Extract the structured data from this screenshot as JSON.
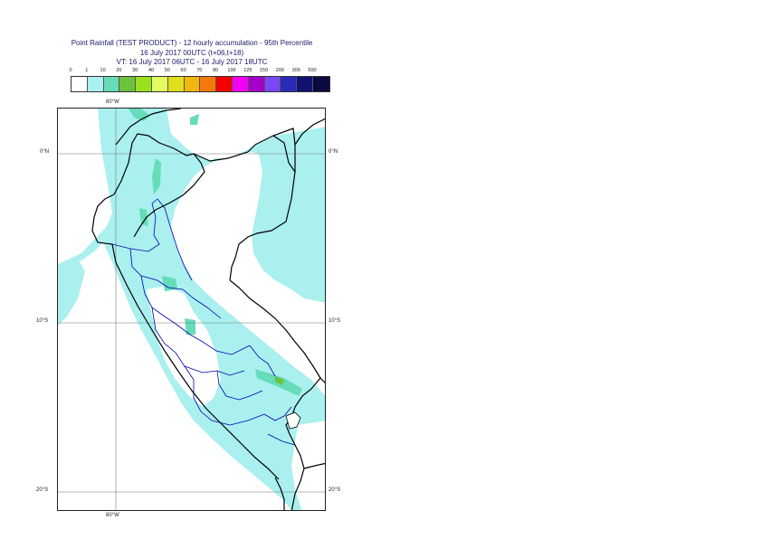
{
  "title": {
    "line1": "Point Rainfall (TEST PRODUCT) - 12 hourly accumulation - 95th Percentile",
    "line2": "16 July 2017 00UTC (t+06,t+18)",
    "line3": "VT: 16 July 2017 06UTC - 16 July 2017 18UTC"
  },
  "legend": {
    "thresholds": [
      "0",
      "1",
      "10",
      "20",
      "30",
      "40",
      "50",
      "60",
      "70",
      "80",
      "100",
      "125",
      "150",
      "200",
      "300",
      "500"
    ],
    "colors": [
      "#ffffff",
      "#aaf0ef",
      "#66dcb8",
      "#6cc23c",
      "#9be01e",
      "#e3fa64",
      "#e0e01c",
      "#f3b60e",
      "#f5780c",
      "#f50000",
      "#f200f2",
      "#a400c8",
      "#7a48f5",
      "#2a2ab8",
      "#121272",
      "#0a0a40"
    ]
  },
  "axes": {
    "lon_top": "80°W",
    "lon_bottom": "80°W",
    "lat_left": [
      "0°N",
      "10°S",
      "20°S"
    ],
    "lat_right": [
      "0°N",
      "10°S",
      "20°S"
    ]
  },
  "colors": {
    "rain_light": "#aaf0ef",
    "rain_moderate": "#66dcb8",
    "rain_heavy": "#6cc23c",
    "border_country": "#000000",
    "border_region": "#0000b0",
    "graticule": "#777777"
  }
}
